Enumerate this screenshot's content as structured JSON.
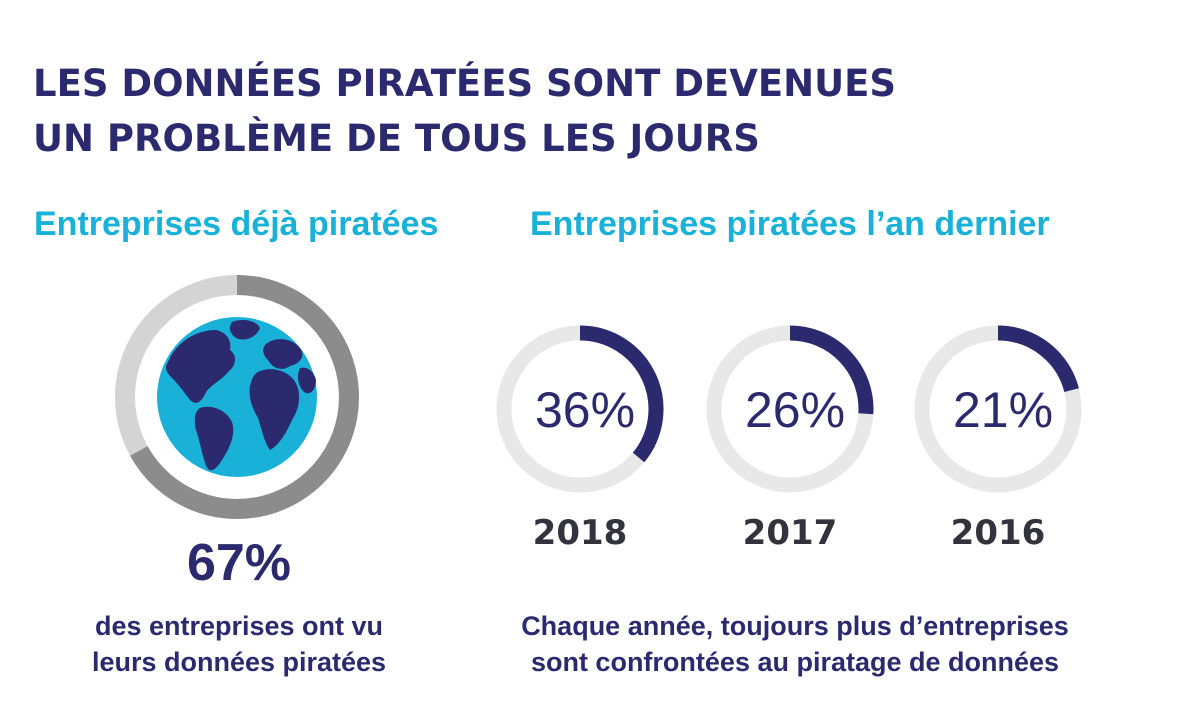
{
  "title": {
    "line1": "LES DONNÉES PIRATÉES SONT DEVENUES",
    "line2": "UN PROBLÈME DE TOUS LES JOURS"
  },
  "left_panel": {
    "heading": "Entreprises déjà piratées",
    "value_label": "67%",
    "caption_line1": "des entreprises ont vu",
    "caption_line2": "leurs données piratées",
    "icon": "globe-icon"
  },
  "right_panel": {
    "heading": "Entreprises piratées l’an dernier",
    "caption_line1": "Chaque année, toujours plus d’entreprises",
    "caption_line2": "sont confrontées au piratage de données"
  },
  "colors": {
    "navy": "#2c2a6e",
    "cyan": "#1ab1d8",
    "ring_light": "#e8e8e8",
    "ring_gray_dark": "#8c8c8c",
    "ring_gray_light": "#d4d4d4"
  },
  "chart_data": [
    {
      "type": "pie",
      "categories": [
        "Entreprises déjà piratées"
      ],
      "values": [
        67
      ],
      "labels": [
        "67%"
      ]
    },
    {
      "type": "pie",
      "categories": [
        "2018",
        "2017",
        "2016"
      ],
      "values": [
        36,
        26,
        21
      ],
      "labels": [
        "36%",
        "26%",
        "21%"
      ]
    }
  ]
}
